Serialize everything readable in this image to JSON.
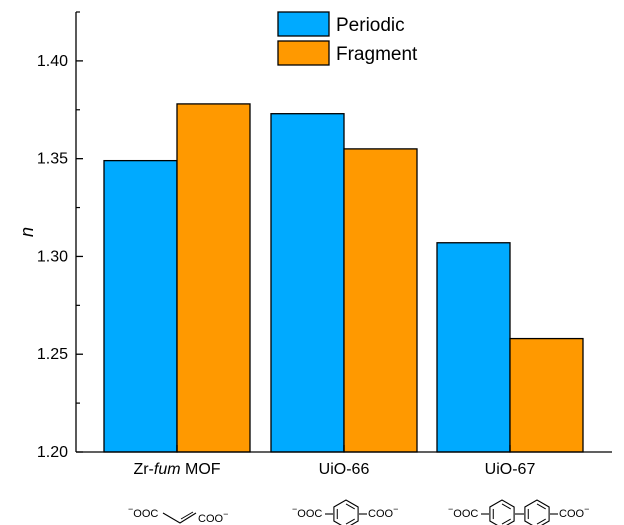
{
  "chart_data": {
    "type": "bar",
    "title": "",
    "xlabel": "",
    "ylabel": "n",
    "ylim": [
      1.2,
      1.425
    ],
    "yticks": [
      "1.20",
      "1.25",
      "1.30",
      "1.35",
      "1.40"
    ],
    "categories": [
      {
        "prefix": "Zr-",
        "italic": "fum",
        "suffix": " MOF"
      },
      {
        "prefix": "UiO-66",
        "italic": "",
        "suffix": ""
      },
      {
        "prefix": "UiO-67",
        "italic": "",
        "suffix": ""
      }
    ],
    "series": [
      {
        "name": "Periodic",
        "color": "#00AAFF",
        "values": [
          1.349,
          1.373,
          1.307
        ]
      },
      {
        "name": "Fragment",
        "color": "#FF9900",
        "values": [
          1.378,
          1.355,
          1.258
        ]
      }
    ],
    "legend_position": "top-center",
    "grid": false
  },
  "linker_structures": [
    {
      "left": "OOC",
      "right": "COO",
      "charge": "−",
      "shape": "alkene"
    },
    {
      "left": "OOC",
      "right": "COO",
      "charge": "−",
      "shape": "benzene"
    },
    {
      "left": "OOC",
      "right": "COO",
      "charge": "−",
      "shape": "biphenyl"
    }
  ]
}
